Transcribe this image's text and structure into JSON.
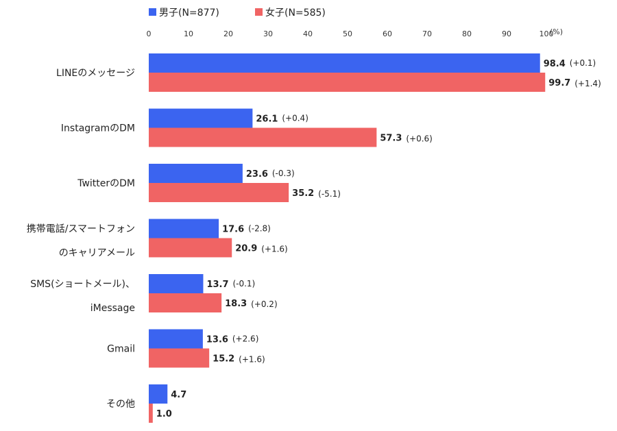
{
  "chart_data": {
    "type": "bar",
    "orientation": "horizontal",
    "unit": "(%)",
    "xlim": [
      0,
      100
    ],
    "ticks": [
      "0",
      "10",
      "20",
      "30",
      "40",
      "50",
      "60",
      "70",
      "80",
      "90",
      "100"
    ],
    "grid": false,
    "legend_position": "top-left",
    "colors": {
      "male": "#3b64f0",
      "female": "#f06464",
      "negative_change": "#3366dd"
    },
    "categories": [
      [
        "LINEのメッセージ"
      ],
      [
        "InstagramのDM"
      ],
      [
        "TwitterのDM"
      ],
      [
        "携帯電話/スマートフォン",
        "のキャリアメール"
      ],
      [
        "SMS(ショートメール)、",
        "iMessage"
      ],
      [
        "Gmail"
      ],
      [
        "その他"
      ]
    ],
    "series": [
      {
        "name": "男子(N=877)",
        "key": "male",
        "values": [
          98.4,
          26.1,
          23.6,
          17.6,
          13.7,
          13.6,
          4.7
        ],
        "labels": [
          "98.4",
          "26.1",
          "23.6",
          "17.6",
          "13.7",
          "13.6",
          "4.7"
        ],
        "changes": [
          "(+0.1)",
          "(+0.4)",
          "(-0.3)",
          "(-2.8)",
          "(-0.1)",
          "(+2.6)",
          ""
        ]
      },
      {
        "name": "女子(N=585)",
        "key": "female",
        "values": [
          99.7,
          57.3,
          35.2,
          20.9,
          18.3,
          15.2,
          1.0
        ],
        "labels": [
          "99.7",
          "57.3",
          "35.2",
          "20.9",
          "18.3",
          "15.2",
          "1.0"
        ],
        "changes": [
          "(+1.4)",
          "(+0.6)",
          "(-5.1)",
          "(+1.6)",
          "(+0.2)",
          "(+1.6)",
          ""
        ]
      }
    ]
  }
}
